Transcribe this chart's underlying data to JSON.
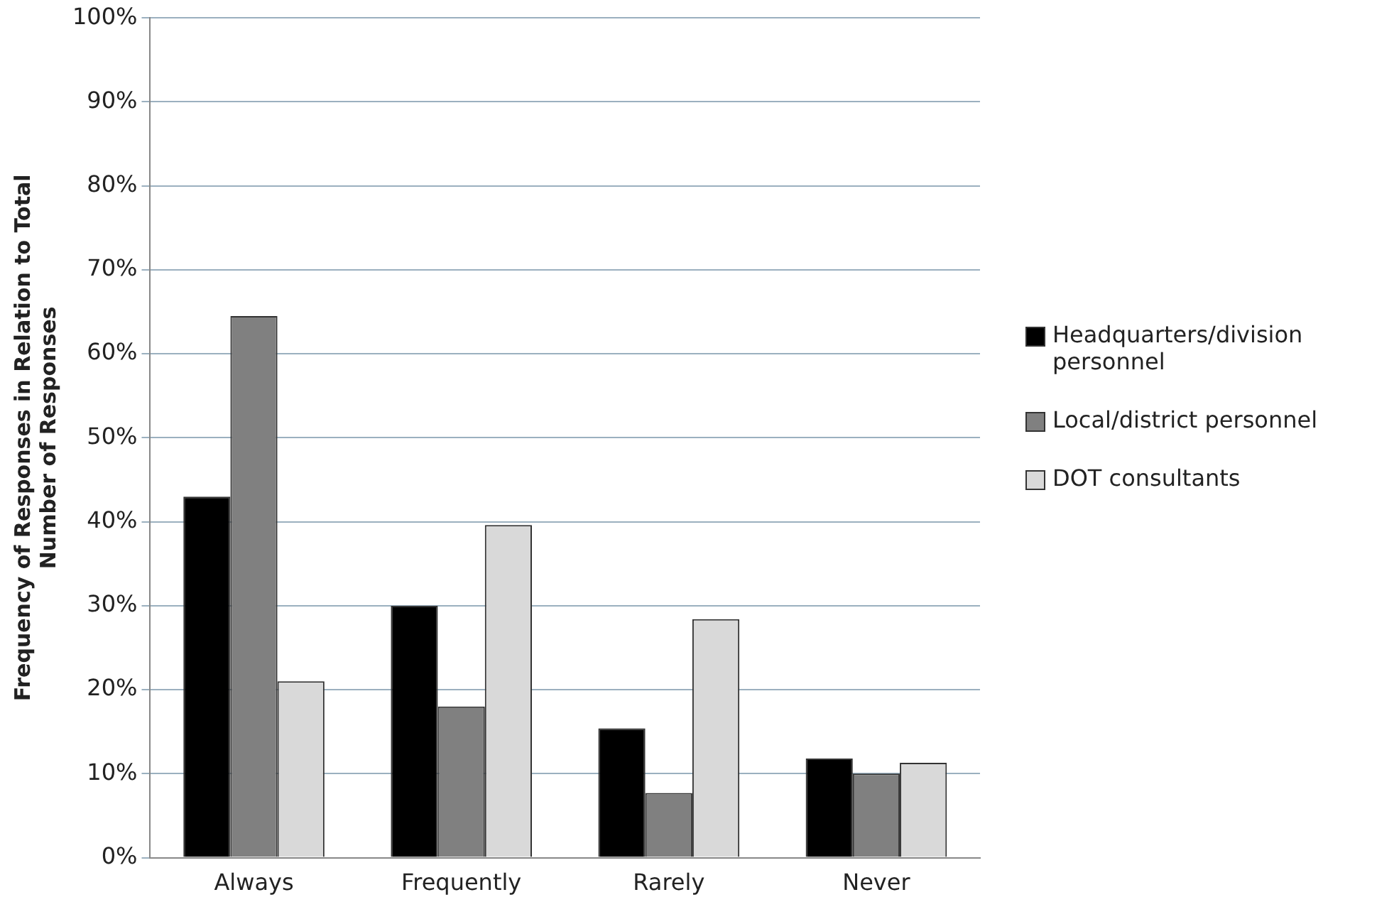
{
  "chart_data": {
    "type": "bar",
    "ylabel": "Frequency of Responses in Relation to Total Number of Responses",
    "categories": [
      "Always",
      "Frequently",
      "Rarely",
      "Never"
    ],
    "series": [
      {
        "name": "Headquarters/division personnel",
        "color": "#000000",
        "values": [
          43,
          30,
          15.4,
          11.8
        ]
      },
      {
        "name": "Local/district personnel",
        "color": "#808080",
        "values": [
          64.5,
          18,
          7.7,
          10
        ]
      },
      {
        "name": "DOT consultants",
        "color": "#d9d9d9",
        "values": [
          21,
          39.6,
          28.4,
          11.3
        ]
      }
    ],
    "ylim": [
      0,
      100
    ],
    "yticks": [
      {
        "value": 0,
        "label": "0%"
      },
      {
        "value": 10,
        "label": "10%"
      },
      {
        "value": 20,
        "label": "20%"
      },
      {
        "value": 30,
        "label": "30%"
      },
      {
        "value": 40,
        "label": "40%"
      },
      {
        "value": 50,
        "label": "50%"
      },
      {
        "value": 60,
        "label": "60%"
      },
      {
        "value": 70,
        "label": "70%"
      },
      {
        "value": 80,
        "label": "80%"
      },
      {
        "value": 90,
        "label": "90%"
      },
      {
        "value": 100,
        "label": "100%"
      }
    ],
    "grid": "y",
    "legend": "right"
  }
}
